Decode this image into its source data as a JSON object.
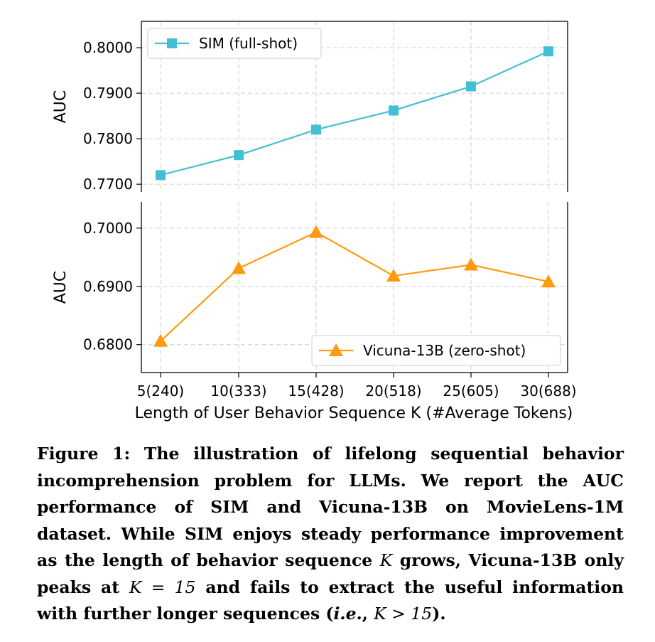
{
  "chart_data": {
    "type": "line",
    "broken_y_axis": true,
    "x_categories": [
      "5(240)",
      "10(333)",
      "15(428)",
      "20(518)",
      "25(605)",
      "30(688)"
    ],
    "xlabel": "Length of User Behavior Sequence K (#Average Tokens)",
    "grid": true,
    "panels": [
      {
        "ylabel": "AUC",
        "ylim": [
          0.7683,
          0.8058
        ],
        "yticks": [
          "0.7700",
          "0.7800",
          "0.7900",
          "0.8000"
        ],
        "legend_position": "top-left",
        "series": [
          {
            "name": "SIM (full-shot)",
            "marker": "square",
            "color": "#42bfd2",
            "values": [
              0.772,
              0.7764,
              0.782,
              0.7862,
              0.7915,
              0.7992
            ]
          }
        ]
      },
      {
        "ylabel": "AUC",
        "ylim": [
          0.6752,
          0.7045
        ],
        "yticks": [
          "0.6800",
          "0.6900",
          "0.7000"
        ],
        "legend_position": "bottom-right",
        "series": [
          {
            "name": "Vicuna-13B (zero-shot)",
            "marker": "triangle",
            "color": "#ff9a0d",
            "values": [
              0.6806,
              0.6931,
              0.6993,
              0.6918,
              0.6937,
              0.6908
            ]
          }
        ]
      }
    ]
  },
  "caption": {
    "part1": "Figure 1: The illustration of lifelong sequential behavior incomprehension problem for LLMs. We report the AUC performance of SIM and Vicuna-13B on MovieLens-1M dataset. While SIM enjoys steady performance improvement as the length of behavior sequence ",
    "math1": "K",
    "part2": " grows, Vicuna-13B only peaks at ",
    "math2": "K = 15",
    "part3": " and fails to extract the useful information with further longer sequences (",
    "ie": "i.e.",
    "part4": ", ",
    "math3": "K > 15",
    "part5": ")."
  }
}
